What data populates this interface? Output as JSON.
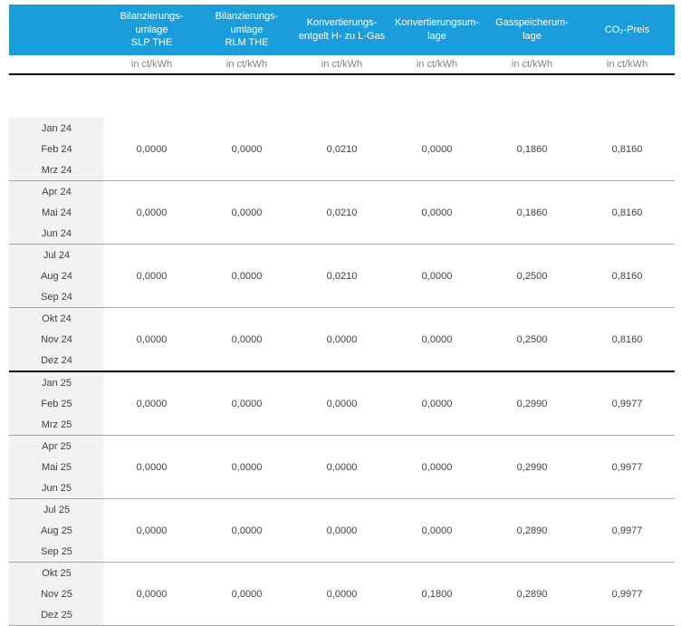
{
  "colors": {
    "header_bg": "#1B9DDB",
    "header_text": "#FFFFFF",
    "unit_text": "#7F7F7F",
    "month_cell_bg": "#F2F2F2",
    "body_text": "#404040",
    "thin_separator": "#A6A6A6",
    "thick_separator": "#000000"
  },
  "table": {
    "columns": [
      {
        "label": "Bilanzierungs-\numlage\nSLP THE",
        "unit": "in ct/kWh"
      },
      {
        "label": "Bilanzierungs-\numlage\nRLM THE",
        "unit": "in ct/kWh"
      },
      {
        "label": "Konvertierungs-\nentgelt H- zu L-Gas",
        "unit": "in ct/kWh"
      },
      {
        "label": "Konvertierungsum-\nlage",
        "unit": "in ct/kWh"
      },
      {
        "label": "Gasspeicherum-lage",
        "unit": "in ct/kWh"
      },
      {
        "label": "CO₂-Preis",
        "unit": "in ct/kWh"
      }
    ],
    "groups": [
      {
        "months": [
          "Jan 24",
          "Feb 24",
          "Mrz 24"
        ],
        "values": [
          "0,0000",
          "0,0000",
          "0,0210",
          "0,0000",
          "0,1860",
          "0,8160"
        ],
        "separator": "thin"
      },
      {
        "months": [
          "Apr 24",
          "Mai 24",
          "Jun 24"
        ],
        "values": [
          "0,0000",
          "0,0000",
          "0,0210",
          "0,0000",
          "0,1860",
          "0,8160"
        ],
        "separator": "thin"
      },
      {
        "months": [
          "Jul 24",
          "Aug 24",
          "Sep 24"
        ],
        "values": [
          "0,0000",
          "0,0000",
          "0,0210",
          "0,0000",
          "0,2500",
          "0,8160"
        ],
        "separator": "thin"
      },
      {
        "months": [
          "Okt 24",
          "Nov 24",
          "Dez 24"
        ],
        "values": [
          "0,0000",
          "0,0000",
          "0,0000",
          "0,0000",
          "0,2500",
          "0,8160"
        ],
        "separator": "thick"
      },
      {
        "months": [
          "Jan 25",
          "Feb 25",
          "Mrz 25"
        ],
        "values": [
          "0,0000",
          "0,0000",
          "0,0000",
          "0,0000",
          "0,2990",
          "0,9977"
        ],
        "separator": "thin"
      },
      {
        "months": [
          "Apr 25",
          "Mai 25",
          "Jun 25"
        ],
        "values": [
          "0,0000",
          "0,0000",
          "0,0000",
          "0,0000",
          "0,2990",
          "0,9977"
        ],
        "separator": "thin"
      },
      {
        "months": [
          "Jul 25",
          "Aug 25",
          "Sep 25"
        ],
        "values": [
          "0,0000",
          "0,0000",
          "0,0000",
          "0,0000",
          "0,2890",
          "0,9977"
        ],
        "separator": "thin"
      },
      {
        "months": [
          "Okt 25",
          "Nov 25",
          "Dez 25"
        ],
        "values": [
          "0,0000",
          "0,0000",
          "0,0000",
          "0,1800",
          "0,2890",
          "0,9977"
        ],
        "separator": "thin"
      }
    ]
  }
}
